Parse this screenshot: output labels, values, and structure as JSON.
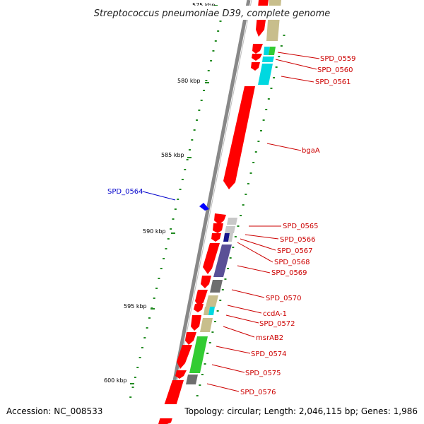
{
  "title": "Streptococcus pneumoniae D39, complete genome",
  "accession": "Accession: NC_008533",
  "topology": "Topology: circular; Length: 2,046,115 bp; Genes: 1,986",
  "ticks": [
    "575 kbp",
    "580 kbp",
    "585 kbp",
    "590 kbp",
    "595 kbp",
    "600 kbp"
  ],
  "genes_right": [
    "SPD_0559",
    "SPD_0560",
    "SPD_0561",
    "bgaA",
    "SPD_0565",
    "SPD_0566",
    "SPD_0567",
    "SPD_0568",
    "SPD_0569",
    "SPD_0570",
    "ccdA-1",
    "SPD_0572",
    "msrAB2",
    "SPD_0574",
    "SPD_0575",
    "SPD_0576"
  ],
  "genes_left": [
    "SPD_0564"
  ],
  "colors": {
    "forward_gene": "#ff0000",
    "reverse_gene": "#0000ff",
    "label_right": "#cc0000",
    "label_left": "#0000cc",
    "backbone": "#888888",
    "gc_dots": "#228b22",
    "cog_khaki": "#c8be8c",
    "cog_cyan": "#00d8e0",
    "cog_green": "#33cc33",
    "cog_navy": "#14148c",
    "cog_slate": "#5a5096",
    "cog_gray": "#6e6e6e",
    "cog_lightgray": "#c8c8c8"
  }
}
